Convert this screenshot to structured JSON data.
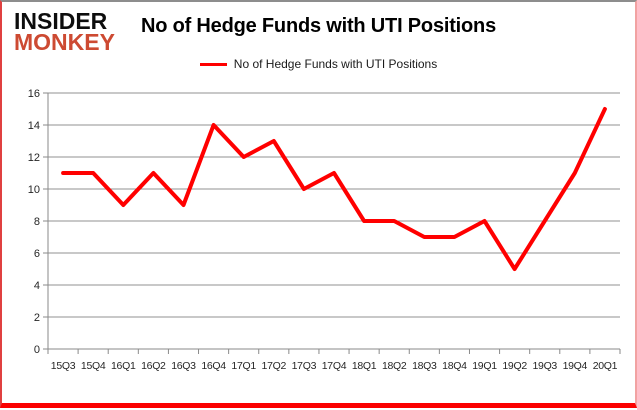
{
  "logo": {
    "line1": "INSIDER",
    "line2": "MONKEY"
  },
  "title": "No of Hedge Funds with UTI Positions",
  "legend": {
    "label": "No of Hedge Funds with UTI Positions",
    "color": "#ff0000"
  },
  "colors": {
    "line": "#ff0000",
    "grid": "#909090",
    "axis": "#8a8a8a",
    "tick_label": "#262626",
    "logo_red": "#cd4a32",
    "border_bottom": "#fb0000"
  },
  "chart_data": {
    "type": "line",
    "title": "No of Hedge Funds with UTI Positions",
    "xlabel": "",
    "ylabel": "",
    "categories": [
      "15Q3",
      "15Q4",
      "16Q1",
      "16Q2",
      "16Q3",
      "16Q4",
      "17Q1",
      "17Q2",
      "17Q3",
      "17Q4",
      "18Q1",
      "18Q2",
      "18Q3",
      "18Q4",
      "19Q1",
      "19Q2",
      "19Q3",
      "19Q4",
      "20Q1"
    ],
    "series": [
      {
        "name": "No of Hedge Funds with UTI Positions",
        "color": "#ff0000",
        "values": [
          11,
          11,
          9,
          11,
          9,
          14,
          12,
          13,
          10,
          11,
          8,
          8,
          7,
          7,
          8,
          5,
          8,
          11,
          15
        ]
      }
    ],
    "ylim": [
      0,
      16
    ],
    "ytick_interval": 2,
    "grid": true,
    "legend_position": "top"
  }
}
